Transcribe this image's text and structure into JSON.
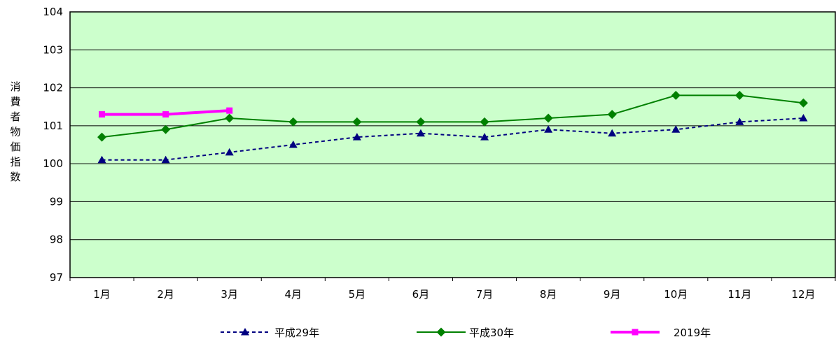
{
  "chart_data": {
    "type": "line",
    "ylabel": "消費者物価指数",
    "ylim": [
      97,
      104
    ],
    "yticks": [
      97,
      98,
      99,
      100,
      101,
      102,
      103,
      104
    ],
    "grid": true,
    "legend_position": "bottom",
    "categories": [
      "1月",
      "2月",
      "3月",
      "4月",
      "5月",
      "6月",
      "7月",
      "8月",
      "9月",
      "10月",
      "11月",
      "12月"
    ],
    "plot_background": "#CCFFCC",
    "series": [
      {
        "name": "平成29年",
        "values": [
          100.1,
          100.1,
          100.3,
          100.5,
          100.7,
          100.8,
          100.7,
          100.9,
          100.8,
          100.9,
          101.1,
          101.2
        ],
        "color": "#000080",
        "marker": "triangle",
        "line_style": "dashed"
      },
      {
        "name": "平成30年",
        "values": [
          100.7,
          100.9,
          101.2,
          101.1,
          101.1,
          101.1,
          101.1,
          101.2,
          101.3,
          101.8,
          101.8,
          101.6
        ],
        "color": "#008000",
        "marker": "diamond",
        "line_style": "solid"
      },
      {
        "name": "2019年",
        "values": [
          101.3,
          101.3,
          101.4,
          null,
          null,
          null,
          null,
          null,
          null,
          null,
          null,
          null
        ],
        "color": "#FF00FF",
        "marker": "square",
        "line_style": "solid"
      }
    ]
  }
}
